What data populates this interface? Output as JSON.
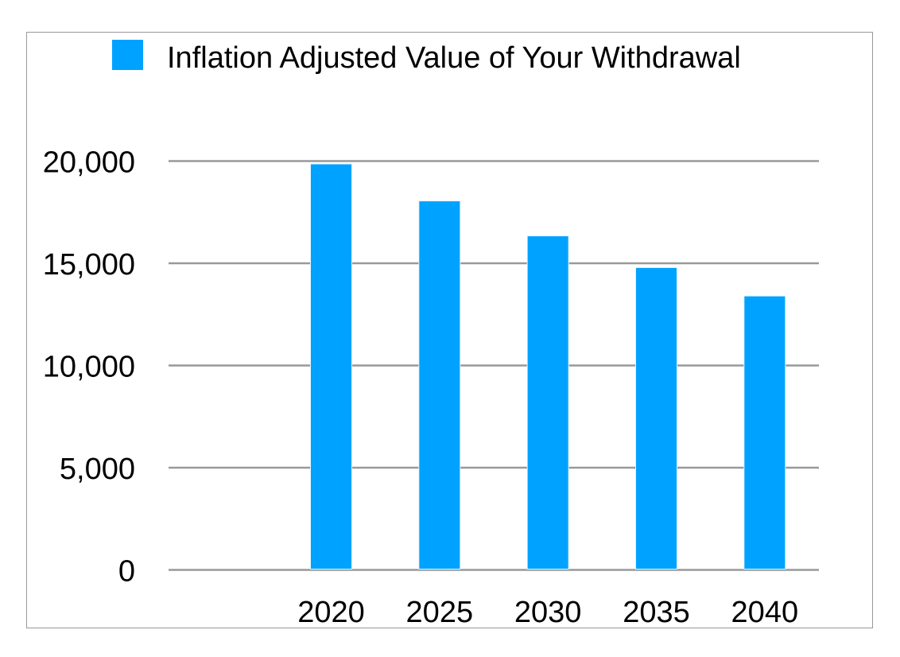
{
  "chart_data": {
    "type": "bar",
    "title": "",
    "xlabel": "",
    "ylabel": "",
    "categories": [
      "2020",
      "2025",
      "2030",
      "2035",
      "2040"
    ],
    "series": [
      {
        "name": "Inflation Adjusted Value of Your Withdrawal",
        "color": "#00a2ff",
        "values": [
          19860,
          18050,
          16340,
          14790,
          13400
        ]
      }
    ],
    "ylim": [
      0,
      20000
    ],
    "yticks": [
      0,
      5000,
      10000,
      15000,
      20000
    ],
    "ytick_labels": [
      "0",
      "5,000",
      "10,000",
      "15,000",
      "20,000"
    ],
    "grid": true,
    "legend": "top-right"
  }
}
